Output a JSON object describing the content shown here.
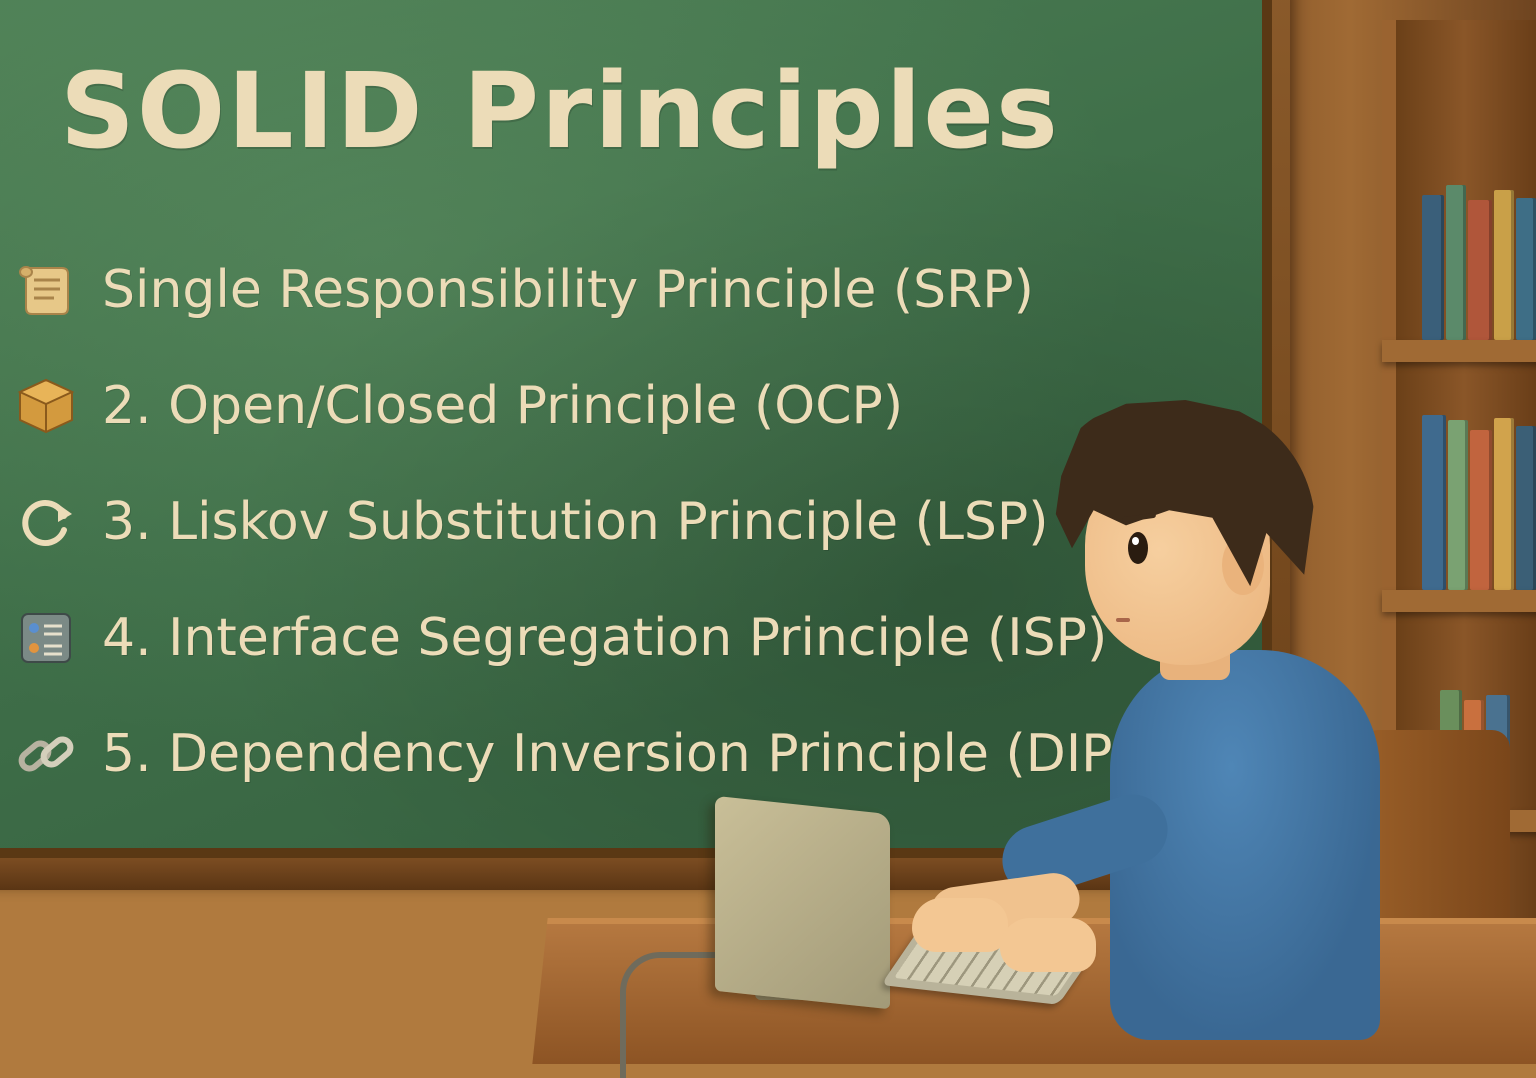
{
  "board": {
    "title": "SOLID Principles",
    "principles": [
      {
        "icon": "scroll-icon",
        "label": "Single Responsibility  Principle (SRP)"
      },
      {
        "icon": "box-icon",
        "label": "2. Open/Closed Principle (OCP)"
      },
      {
        "icon": "refresh-arrow-icon",
        "label": "3. Liskov Substitution Principle (LSP)"
      },
      {
        "icon": "interface-panel-icon",
        "label": "4. Interface Segregation Principle (ISP)"
      },
      {
        "icon": "chain-link-icon",
        "label": "5. Dependency Inversion Principle (DIP)"
      }
    ]
  },
  "colors": {
    "chalkboard": "#3f6f49",
    "chalk_text": "#ecdcb8",
    "wood_frame": "#6a4018",
    "shirt": "#3a6893",
    "hair": "#3d2b1a"
  }
}
